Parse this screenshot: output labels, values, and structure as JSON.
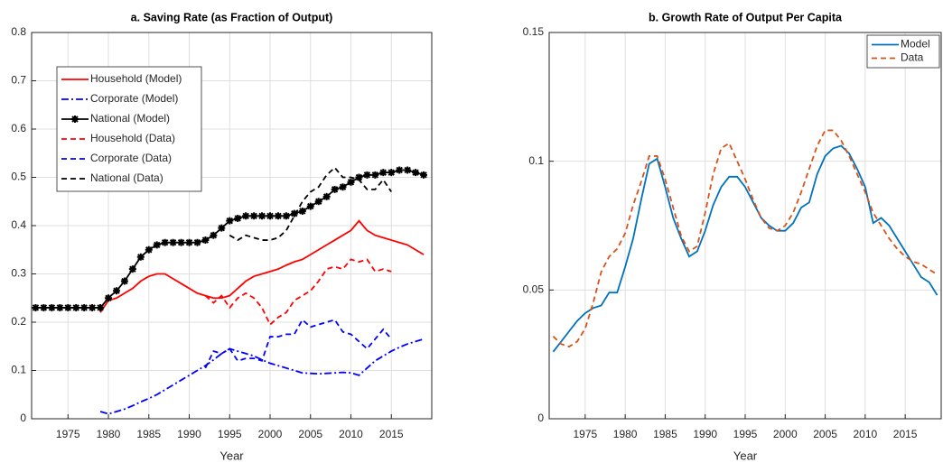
{
  "chart_data": [
    {
      "type": "line",
      "title": "a. Saving Rate (as Fraction of Output)",
      "x_label": "Year",
      "x": [
        1971,
        1972,
        1973,
        1974,
        1975,
        1976,
        1977,
        1978,
        1979,
        1980,
        1981,
        1982,
        1983,
        1984,
        1985,
        1986,
        1987,
        1988,
        1989,
        1990,
        1991,
        1992,
        1993,
        1994,
        1995,
        1996,
        1997,
        1998,
        1999,
        2000,
        2001,
        2002,
        2003,
        2004,
        2005,
        2006,
        2007,
        2008,
        2009,
        2010,
        2011,
        2012,
        2013,
        2014,
        2015,
        2016,
        2017,
        2018,
        2019
      ],
      "xlim": [
        1970.5,
        2020
      ],
      "xticks": [
        1975,
        1980,
        1985,
        1990,
        1995,
        2000,
        2005,
        2010,
        2015
      ],
      "ylim": [
        0,
        0.8
      ],
      "yticks": [
        0,
        0.1,
        0.2,
        0.3,
        0.4,
        0.5,
        0.6,
        0.7,
        0.8
      ],
      "grid": true,
      "legend": "upper left",
      "series": [
        {
          "name": "Household (Model)",
          "color": "#ff0000",
          "style": "solid",
          "marker": "dot",
          "values": [
            null,
            null,
            null,
            null,
            null,
            null,
            null,
            null,
            0.22,
            0.245,
            0.25,
            0.26,
            0.27,
            0.285,
            0.295,
            0.3,
            0.3,
            0.29,
            0.28,
            0.27,
            0.26,
            0.255,
            0.25,
            0.25,
            0.255,
            0.27,
            0.285,
            0.295,
            0.3,
            0.305,
            0.31,
            0.318,
            0.325,
            0.33,
            0.34,
            0.35,
            0.36,
            0.37,
            0.38,
            0.39,
            0.41,
            0.39,
            0.38,
            0.375,
            0.37,
            0.365,
            0.36,
            0.35,
            0.34
          ]
        },
        {
          "name": "Corporate (Model)",
          "color": "#0000ff",
          "style": "dashdot",
          "values": [
            null,
            null,
            null,
            null,
            null,
            null,
            null,
            null,
            0.015,
            0.01,
            0.015,
            0.02,
            0.027,
            0.035,
            0.042,
            0.05,
            0.06,
            0.07,
            0.08,
            0.09,
            0.1,
            0.11,
            0.122,
            0.135,
            0.145,
            0.14,
            0.135,
            0.13,
            0.122,
            0.115,
            0.11,
            0.105,
            0.1,
            0.095,
            0.094,
            0.093,
            0.094,
            0.095,
            0.096,
            0.095,
            0.09,
            0.105,
            0.12,
            0.13,
            0.14,
            0.148,
            0.155,
            0.16,
            0.165
          ]
        },
        {
          "name": "National (Model)",
          "color": "#000000",
          "style": "solid",
          "marker": "star",
          "values": [
            0.23,
            0.23,
            0.23,
            0.23,
            0.23,
            0.23,
            0.23,
            0.23,
            0.23,
            0.25,
            0.265,
            0.285,
            0.31,
            0.335,
            0.35,
            0.36,
            0.365,
            0.365,
            0.365,
            0.365,
            0.365,
            0.37,
            0.38,
            0.395,
            0.41,
            0.415,
            0.42,
            0.42,
            0.42,
            0.42,
            0.42,
            0.42,
            0.425,
            0.43,
            0.44,
            0.45,
            0.46,
            0.475,
            0.48,
            0.49,
            0.5,
            0.505,
            0.505,
            0.51,
            0.51,
            0.515,
            0.515,
            0.51,
            0.505
          ]
        },
        {
          "name": "Household (Data)",
          "color": "#ff0000",
          "style": "dashed",
          "values": [
            null,
            null,
            null,
            null,
            null,
            null,
            null,
            null,
            null,
            null,
            null,
            null,
            null,
            null,
            null,
            null,
            null,
            null,
            null,
            null,
            null,
            0.255,
            0.24,
            0.255,
            0.23,
            0.25,
            0.26,
            0.25,
            0.23,
            0.195,
            0.21,
            0.22,
            0.245,
            0.255,
            0.265,
            0.285,
            0.31,
            0.315,
            0.31,
            0.33,
            0.325,
            0.33,
            0.305,
            0.31,
            0.305,
            null,
            null,
            null,
            null
          ]
        },
        {
          "name": "Corporate (Data)",
          "color": "#0000ff",
          "style": "dashed",
          "values": [
            null,
            null,
            null,
            null,
            null,
            null,
            null,
            null,
            null,
            null,
            null,
            null,
            null,
            null,
            null,
            null,
            null,
            null,
            null,
            null,
            null,
            0.105,
            0.14,
            0.135,
            0.145,
            0.12,
            0.125,
            0.125,
            0.12,
            0.17,
            0.17,
            0.175,
            0.175,
            0.205,
            0.19,
            0.195,
            0.2,
            0.205,
            0.18,
            0.175,
            0.16,
            0.145,
            0.165,
            0.185,
            0.165,
            null,
            null,
            null,
            null
          ]
        },
        {
          "name": "National (Data)",
          "color": "#000000",
          "style": "dashed",
          "values": [
            null,
            null,
            null,
            null,
            null,
            null,
            null,
            null,
            null,
            null,
            null,
            null,
            null,
            null,
            null,
            null,
            null,
            null,
            null,
            null,
            null,
            null,
            null,
            null,
            0.38,
            0.37,
            0.38,
            0.375,
            0.37,
            0.37,
            0.375,
            0.39,
            0.42,
            0.45,
            0.47,
            0.48,
            0.505,
            0.52,
            0.5,
            0.5,
            0.495,
            0.475,
            0.475,
            0.495,
            0.47,
            null,
            null,
            null,
            null
          ]
        }
      ]
    },
    {
      "type": "line",
      "title": "b. Growth Rate of Output Per Capita",
      "x_label": "Year",
      "x": [
        1971,
        1972,
        1973,
        1974,
        1975,
        1976,
        1977,
        1978,
        1979,
        1980,
        1981,
        1982,
        1983,
        1984,
        1985,
        1986,
        1987,
        1988,
        1989,
        1990,
        1991,
        1992,
        1993,
        1994,
        1995,
        1996,
        1997,
        1998,
        1999,
        2000,
        2001,
        2002,
        2003,
        2004,
        2005,
        2006,
        2007,
        2008,
        2009,
        2010,
        2011,
        2012,
        2013,
        2014,
        2015,
        2016,
        2017,
        2018,
        2019
      ],
      "xlim": [
        1970.5,
        2019.5
      ],
      "xticks": [
        1975,
        1980,
        1985,
        1990,
        1995,
        2000,
        2005,
        2010,
        2015
      ],
      "ylim": [
        0,
        0.15
      ],
      "yticks": [
        0,
        0.05,
        0.1,
        0.15
      ],
      "grid": true,
      "legend": "upper right",
      "series": [
        {
          "name": "Model",
          "color": "#0072bd",
          "style": "solid",
          "values": [
            0.026,
            0.03,
            0.034,
            0.038,
            0.041,
            0.043,
            0.044,
            0.049,
            0.049,
            0.059,
            0.07,
            0.085,
            0.099,
            0.101,
            0.09,
            0.078,
            0.07,
            0.063,
            0.065,
            0.073,
            0.083,
            0.09,
            0.094,
            0.094,
            0.09,
            0.084,
            0.078,
            0.075,
            0.073,
            0.073,
            0.076,
            0.082,
            0.084,
            0.095,
            0.102,
            0.105,
            0.106,
            0.103,
            0.097,
            0.09,
            0.076,
            0.078,
            0.075,
            0.07,
            0.065,
            0.06,
            0.055,
            0.053,
            0.048
          ]
        },
        {
          "name": "Data",
          "color": "#d95319",
          "style": "dashed",
          "values": [
            0.032,
            0.029,
            0.028,
            0.03,
            0.035,
            0.045,
            0.057,
            0.063,
            0.066,
            0.072,
            0.083,
            0.092,
            0.102,
            0.102,
            0.093,
            0.082,
            0.071,
            0.065,
            0.067,
            0.08,
            0.095,
            0.105,
            0.107,
            0.1,
            0.093,
            0.085,
            0.078,
            0.074,
            0.073,
            0.075,
            0.08,
            0.088,
            0.097,
            0.106,
            0.112,
            0.112,
            0.108,
            0.102,
            0.095,
            0.088,
            0.08,
            0.075,
            0.07,
            0.066,
            0.063,
            0.061,
            0.06,
            0.058,
            0.056
          ]
        }
      ]
    }
  ]
}
